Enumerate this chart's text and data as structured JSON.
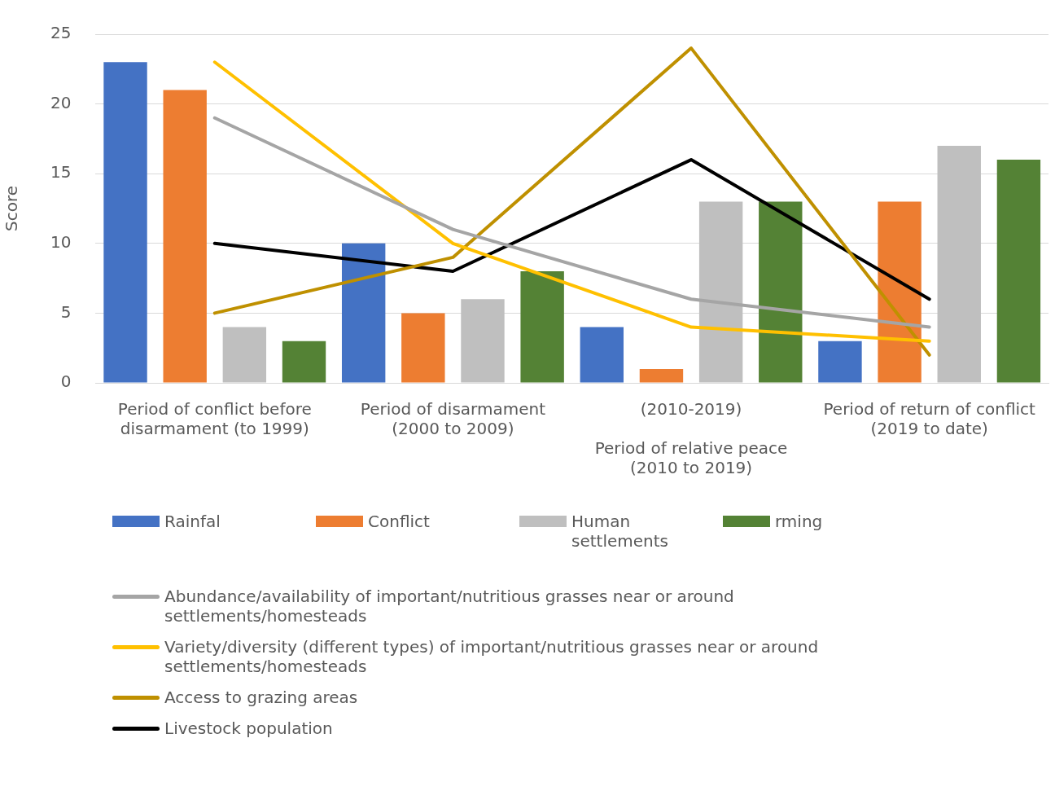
{
  "chart_data": {
    "type": "bar",
    "ylabel": "Score",
    "categories": [
      "Period of conflict before\ndisarmament (to 1999)",
      "Period of disarmament\n(2000 to 2009)",
      "(2010-2019)\n \nPeriod of relative peace\n(2010 to 2019)",
      "Period of return of conflict\n(2019 to date)"
    ],
    "series": [
      {
        "name": "Rainfal",
        "color": "#4472c4",
        "values": [
          23,
          10,
          4,
          3
        ]
      },
      {
        "name": "Conflict",
        "color": "#ed7d31",
        "values": [
          21,
          5,
          1,
          13
        ]
      },
      {
        "name": "Human settlements",
        "color": "#bfbfbf",
        "values": [
          4,
          6,
          13,
          17
        ]
      },
      {
        "name": "rming",
        "color": "#548235",
        "values": [
          3,
          8,
          13,
          16
        ]
      },
      {
        "name": "Abundance/availability of important/nutritious grasses near or around settlements/homesteads",
        "type": "line",
        "color": "#a5a5a5",
        "values": [
          19,
          11,
          6,
          4
        ]
      },
      {
        "name": "Variety/diversity (different types) of important/nutritious grasses near or around settlements/homesteads",
        "type": "line",
        "color": "#ffc000",
        "values": [
          23,
          10,
          4,
          3
        ]
      },
      {
        "name": "Access to grazing areas",
        "type": "line",
        "color": "#bf9000",
        "values": [
          5,
          9,
          24,
          2
        ]
      },
      {
        "name": "Livestock population",
        "type": "line",
        "color": "#000000",
        "values": [
          10,
          8,
          16,
          6
        ]
      }
    ],
    "ylim": [
      0,
      25
    ],
    "yticks": [
      0,
      5,
      10,
      15,
      20,
      25
    ],
    "grid": "y",
    "legend": "bottom",
    "marker": "none",
    "line_style": "solid"
  }
}
